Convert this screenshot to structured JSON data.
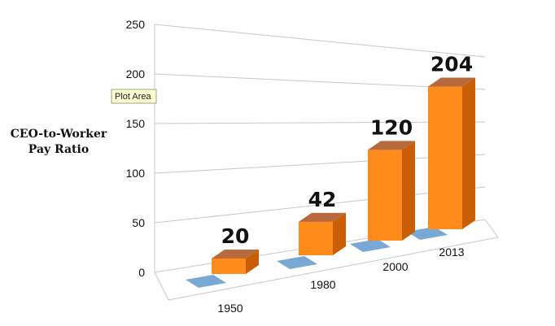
{
  "chart_data": {
    "type": "bar",
    "title": "",
    "xlabel": "",
    "ylabel_lines": [
      "CEO-to-Worker",
      "Pay Ratio"
    ],
    "categories": [
      "1950",
      "1980",
      "2000",
      "2013"
    ],
    "series": [
      {
        "color": "#6b9fd0",
        "values": [
          0,
          0,
          0,
          0
        ]
      },
      {
        "color": "#ff8c1a",
        "values": [
          20,
          42,
          120,
          204
        ]
      }
    ],
    "data_labels": [
      "20",
      "42",
      "120",
      "204"
    ],
    "ylim": [
      0,
      250
    ],
    "yticks": [
      "0",
      "50",
      "100",
      "150",
      "200",
      "250"
    ],
    "grid": true,
    "view": "3d-perspective"
  },
  "tooltip": {
    "text": "Plot Area"
  }
}
